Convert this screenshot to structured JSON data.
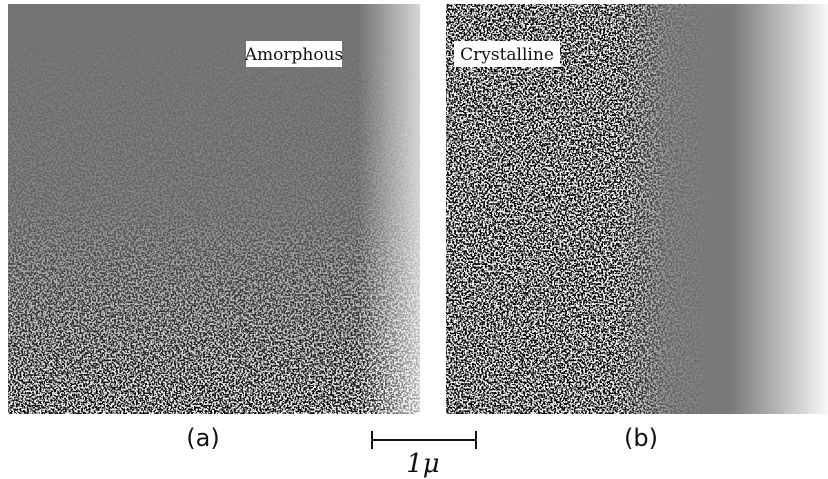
{
  "panels": [
    {
      "annotation": "Amorphous",
      "label": "(a)"
    },
    {
      "annotation": "Crystalline",
      "label": "(b)"
    }
  ],
  "scale_bar": {
    "label": "1μ"
  }
}
